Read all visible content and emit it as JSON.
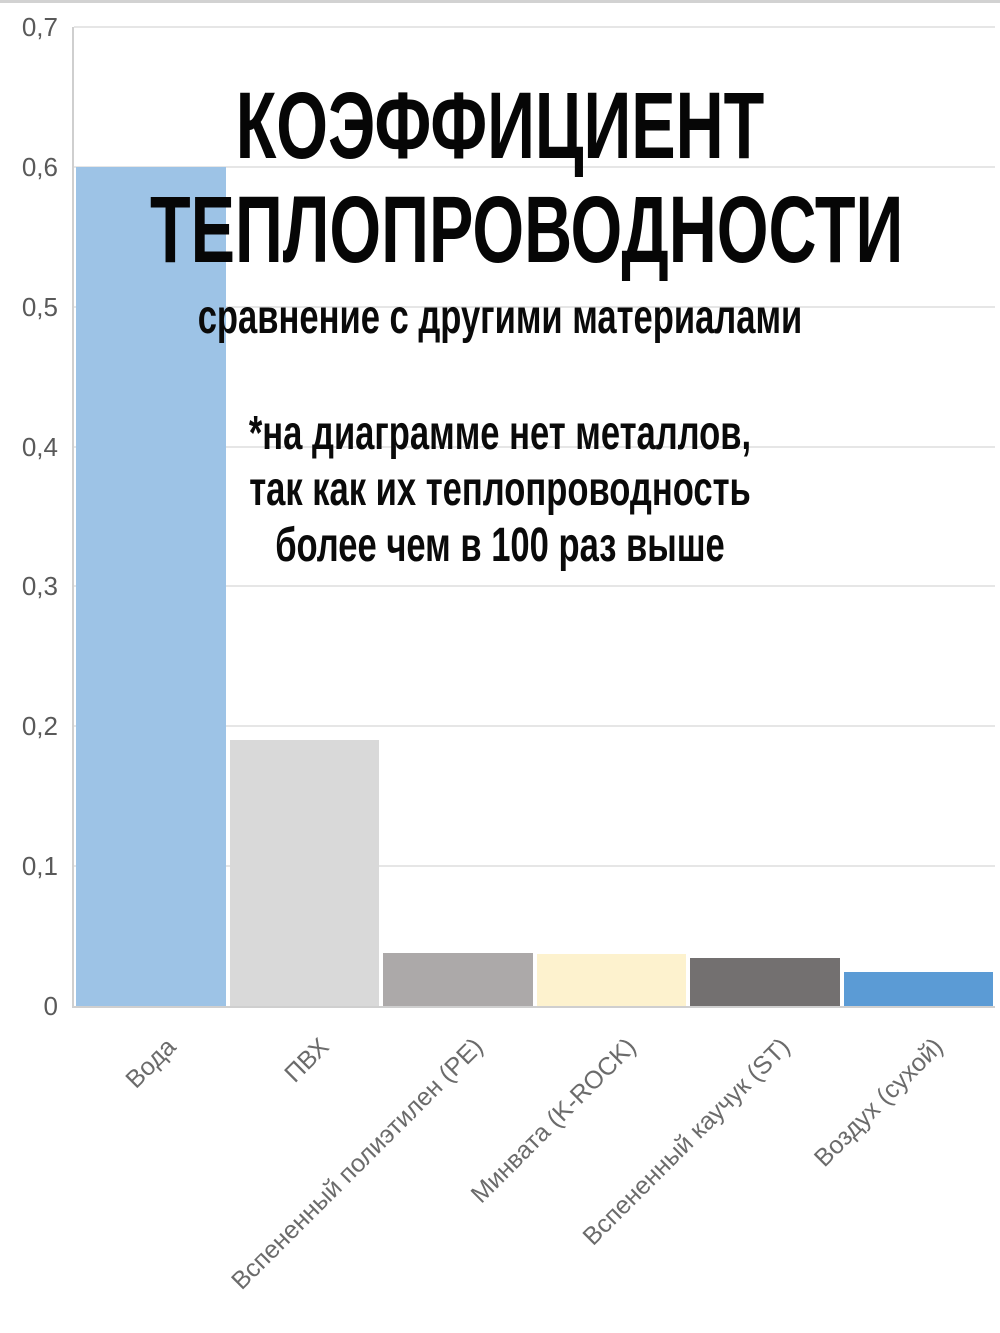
{
  "page": {
    "background": "#ffffff",
    "top_rule_color": "#d2d2d2"
  },
  "header": {
    "title_lines": [
      "КОЭФФИЦИЕНТ",
      "ТЕПЛОПРОВОДНОСТИ"
    ],
    "subtitle": "сравнение с другими материалами",
    "note_lines": [
      "*на диаграмме нет металлов,",
      "так как их теплопроводность",
      "более чем в 100 раз выше"
    ]
  },
  "chart_data": {
    "type": "bar",
    "title": "КОЭФФИЦИЕНТ ТЕПЛОПРОВОДНОСТИ",
    "subtitle": "сравнение с другими материалами",
    "annotation": "*на диаграмме нет металлов, так как их теплопроводность более чем в 100 раз выше",
    "categories": [
      "Вода",
      "ПВХ",
      "Вспененный полиэтилен (PE)",
      "Минвата (K-ROCK)",
      "Вспененный каучук (ST)",
      "Воздух (сухой)"
    ],
    "values": [
      0.6,
      0.19,
      0.038,
      0.037,
      0.034,
      0.024
    ],
    "bar_colors": [
      "#9DC3E6",
      "#D9D9D9",
      "#ACA9A9",
      "#FDF2CE",
      "#737070",
      "#5B9BD5"
    ],
    "ylim": [
      0,
      0.7
    ],
    "ytick_values": [
      0,
      0.1,
      0.2,
      0.3,
      0.4,
      0.5,
      0.6,
      0.7
    ],
    "ytick_labels": [
      "0",
      "0,1",
      "0,2",
      "0,3",
      "0,4",
      "0,5",
      "0,6",
      "0,7"
    ],
    "decimal_separator": ",",
    "grid": true,
    "legend": false,
    "tick_text_color": "#595959",
    "category_text_color": "#6b6b6b",
    "grid_color": "#e6e6e6",
    "axis_color": "#cfcfcf"
  }
}
